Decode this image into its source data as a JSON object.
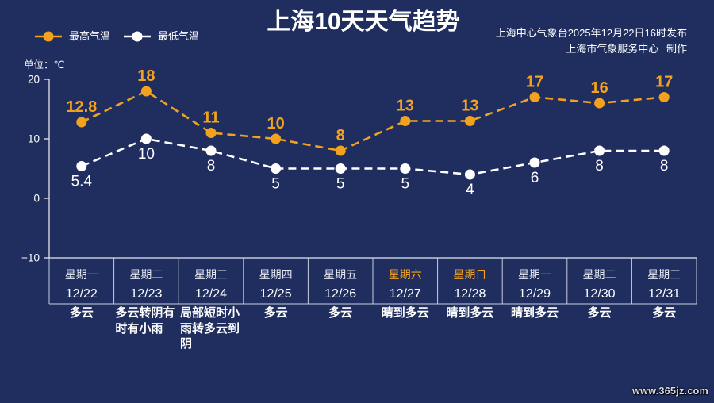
{
  "theme": {
    "background": "#1f2e5f",
    "text": "#ffffff",
    "weekday": "#e6e9f2",
    "weekend": "#f2a21e"
  },
  "chart_data": {
    "type": "line",
    "title": "上海10天天气趋势",
    "source": [
      "上海中心气象台2025年12月22日16时发布",
      "上海市气象服务中心 制作"
    ],
    "ylabel": "单位：℃",
    "ylim": [
      -10,
      20
    ],
    "yticks": [
      -10,
      0,
      10,
      20
    ],
    "ytick_labels": [
      "−10",
      "0",
      "10",
      "20"
    ],
    "categories": [
      "12/22",
      "12/23",
      "12/24",
      "12/25",
      "12/26",
      "12/27",
      "12/28",
      "12/29",
      "12/30",
      "12/31"
    ],
    "weekdays": [
      "星期一",
      "星期二",
      "星期三",
      "星期四",
      "星期五",
      "星期六",
      "星期日",
      "星期一",
      "星期二",
      "星期三"
    ],
    "weekend": [
      false,
      false,
      false,
      false,
      false,
      true,
      true,
      false,
      false,
      false
    ],
    "weather": [
      "多云",
      "多云转阴有时有小雨",
      "局部短时小雨转多云到阴",
      "多云",
      "多云",
      "晴到多云",
      "晴到多云",
      "晴到多云",
      "多云",
      "多云"
    ],
    "series": [
      {
        "name": "最高气温",
        "color": "#f2a21e",
        "values": [
          12.8,
          18,
          11,
          10,
          8,
          13,
          13,
          17,
          16,
          17
        ]
      },
      {
        "name": "最低气温",
        "color": "#ffffff",
        "values": [
          5.4,
          10,
          8,
          5,
          5,
          5,
          4,
          6,
          8,
          8
        ]
      }
    ],
    "legend_position": "top-left",
    "grid": false
  },
  "watermark": "www.365jz.com"
}
